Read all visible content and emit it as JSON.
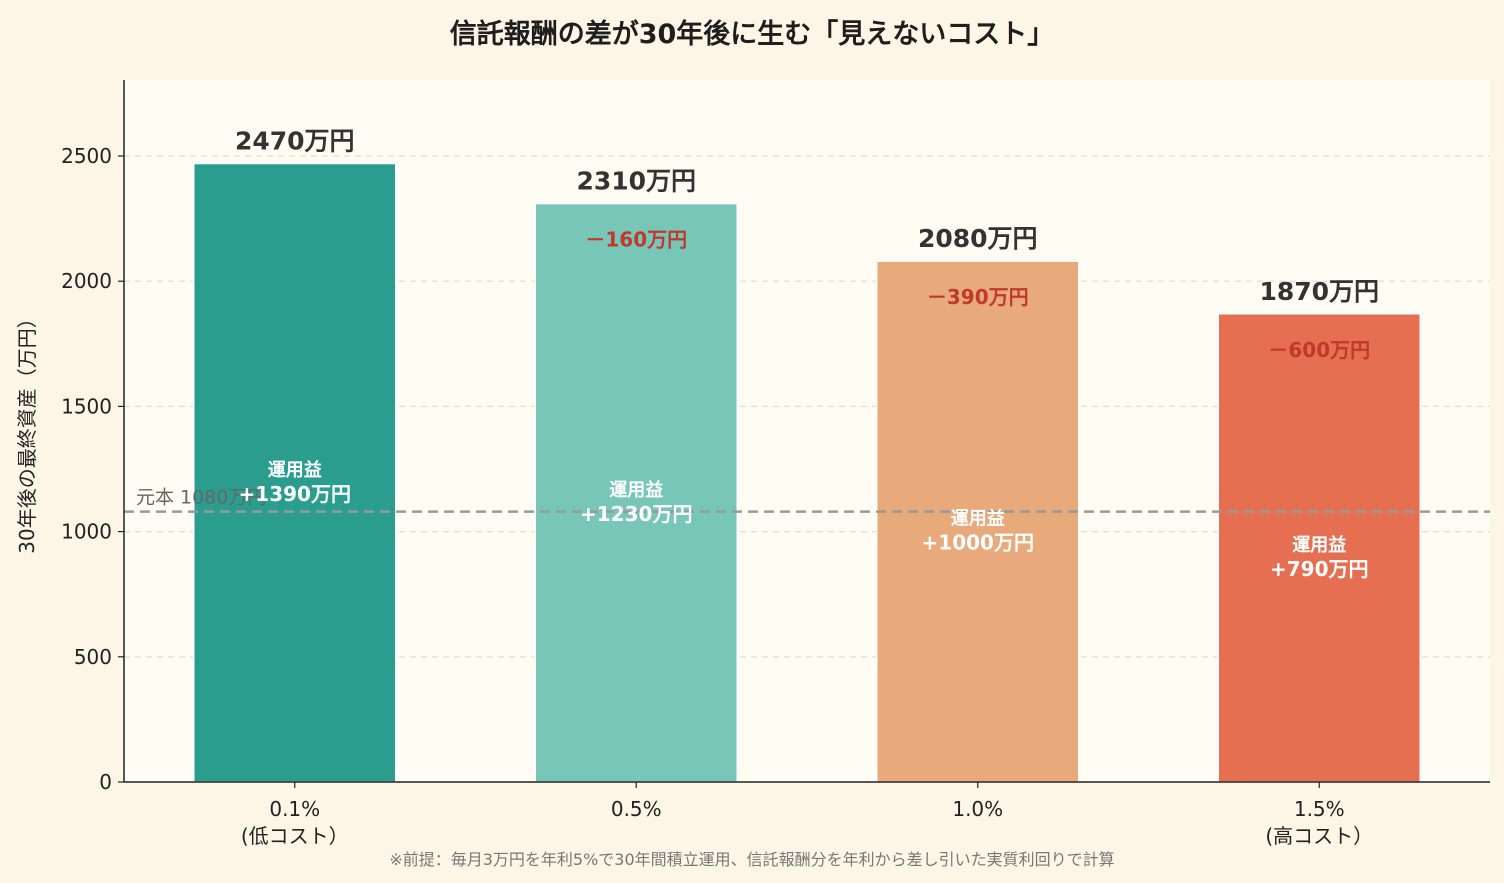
{
  "title": "信託報酬の差が30年後に生む「見えないコスト」",
  "footnote": "※前提：毎月3万円を年利5%で30年間積立運用、信託報酬分を年利から差し引いた実質利回りで計算",
  "chart_data": {
    "type": "bar",
    "title": "信託報酬の差が30年後に生む「見えないコスト」",
    "ylabel": "30年後の最終資産（万円）",
    "xlabel": "",
    "ylim": [
      0,
      2800
    ],
    "yticks": [
      0,
      500,
      1000,
      1500,
      2000,
      2500
    ],
    "grid": true,
    "categories": [
      "0.1%\n(低コスト）",
      "0.5%",
      "1.0%",
      "1.5%\n(高コスト）"
    ],
    "values": [
      2470,
      2310,
      2080,
      1870
    ],
    "value_labels": [
      "2470万円",
      "2310万円",
      "2080万円",
      "1870万円"
    ],
    "diff_labels": [
      "",
      "－160万円",
      "－390万円",
      "－600万円"
    ],
    "gain_heading": "運用益",
    "gain_labels": [
      "+1390万円",
      "+1230万円",
      "+1000万円",
      "+790万円"
    ],
    "bar_colors": [
      "#2a9d8f",
      "#78c6b7",
      "#e8a97b",
      "#e76f51"
    ],
    "principal": {
      "value": 1080,
      "label": "元本 1080万円",
      "color": "#999999"
    }
  }
}
